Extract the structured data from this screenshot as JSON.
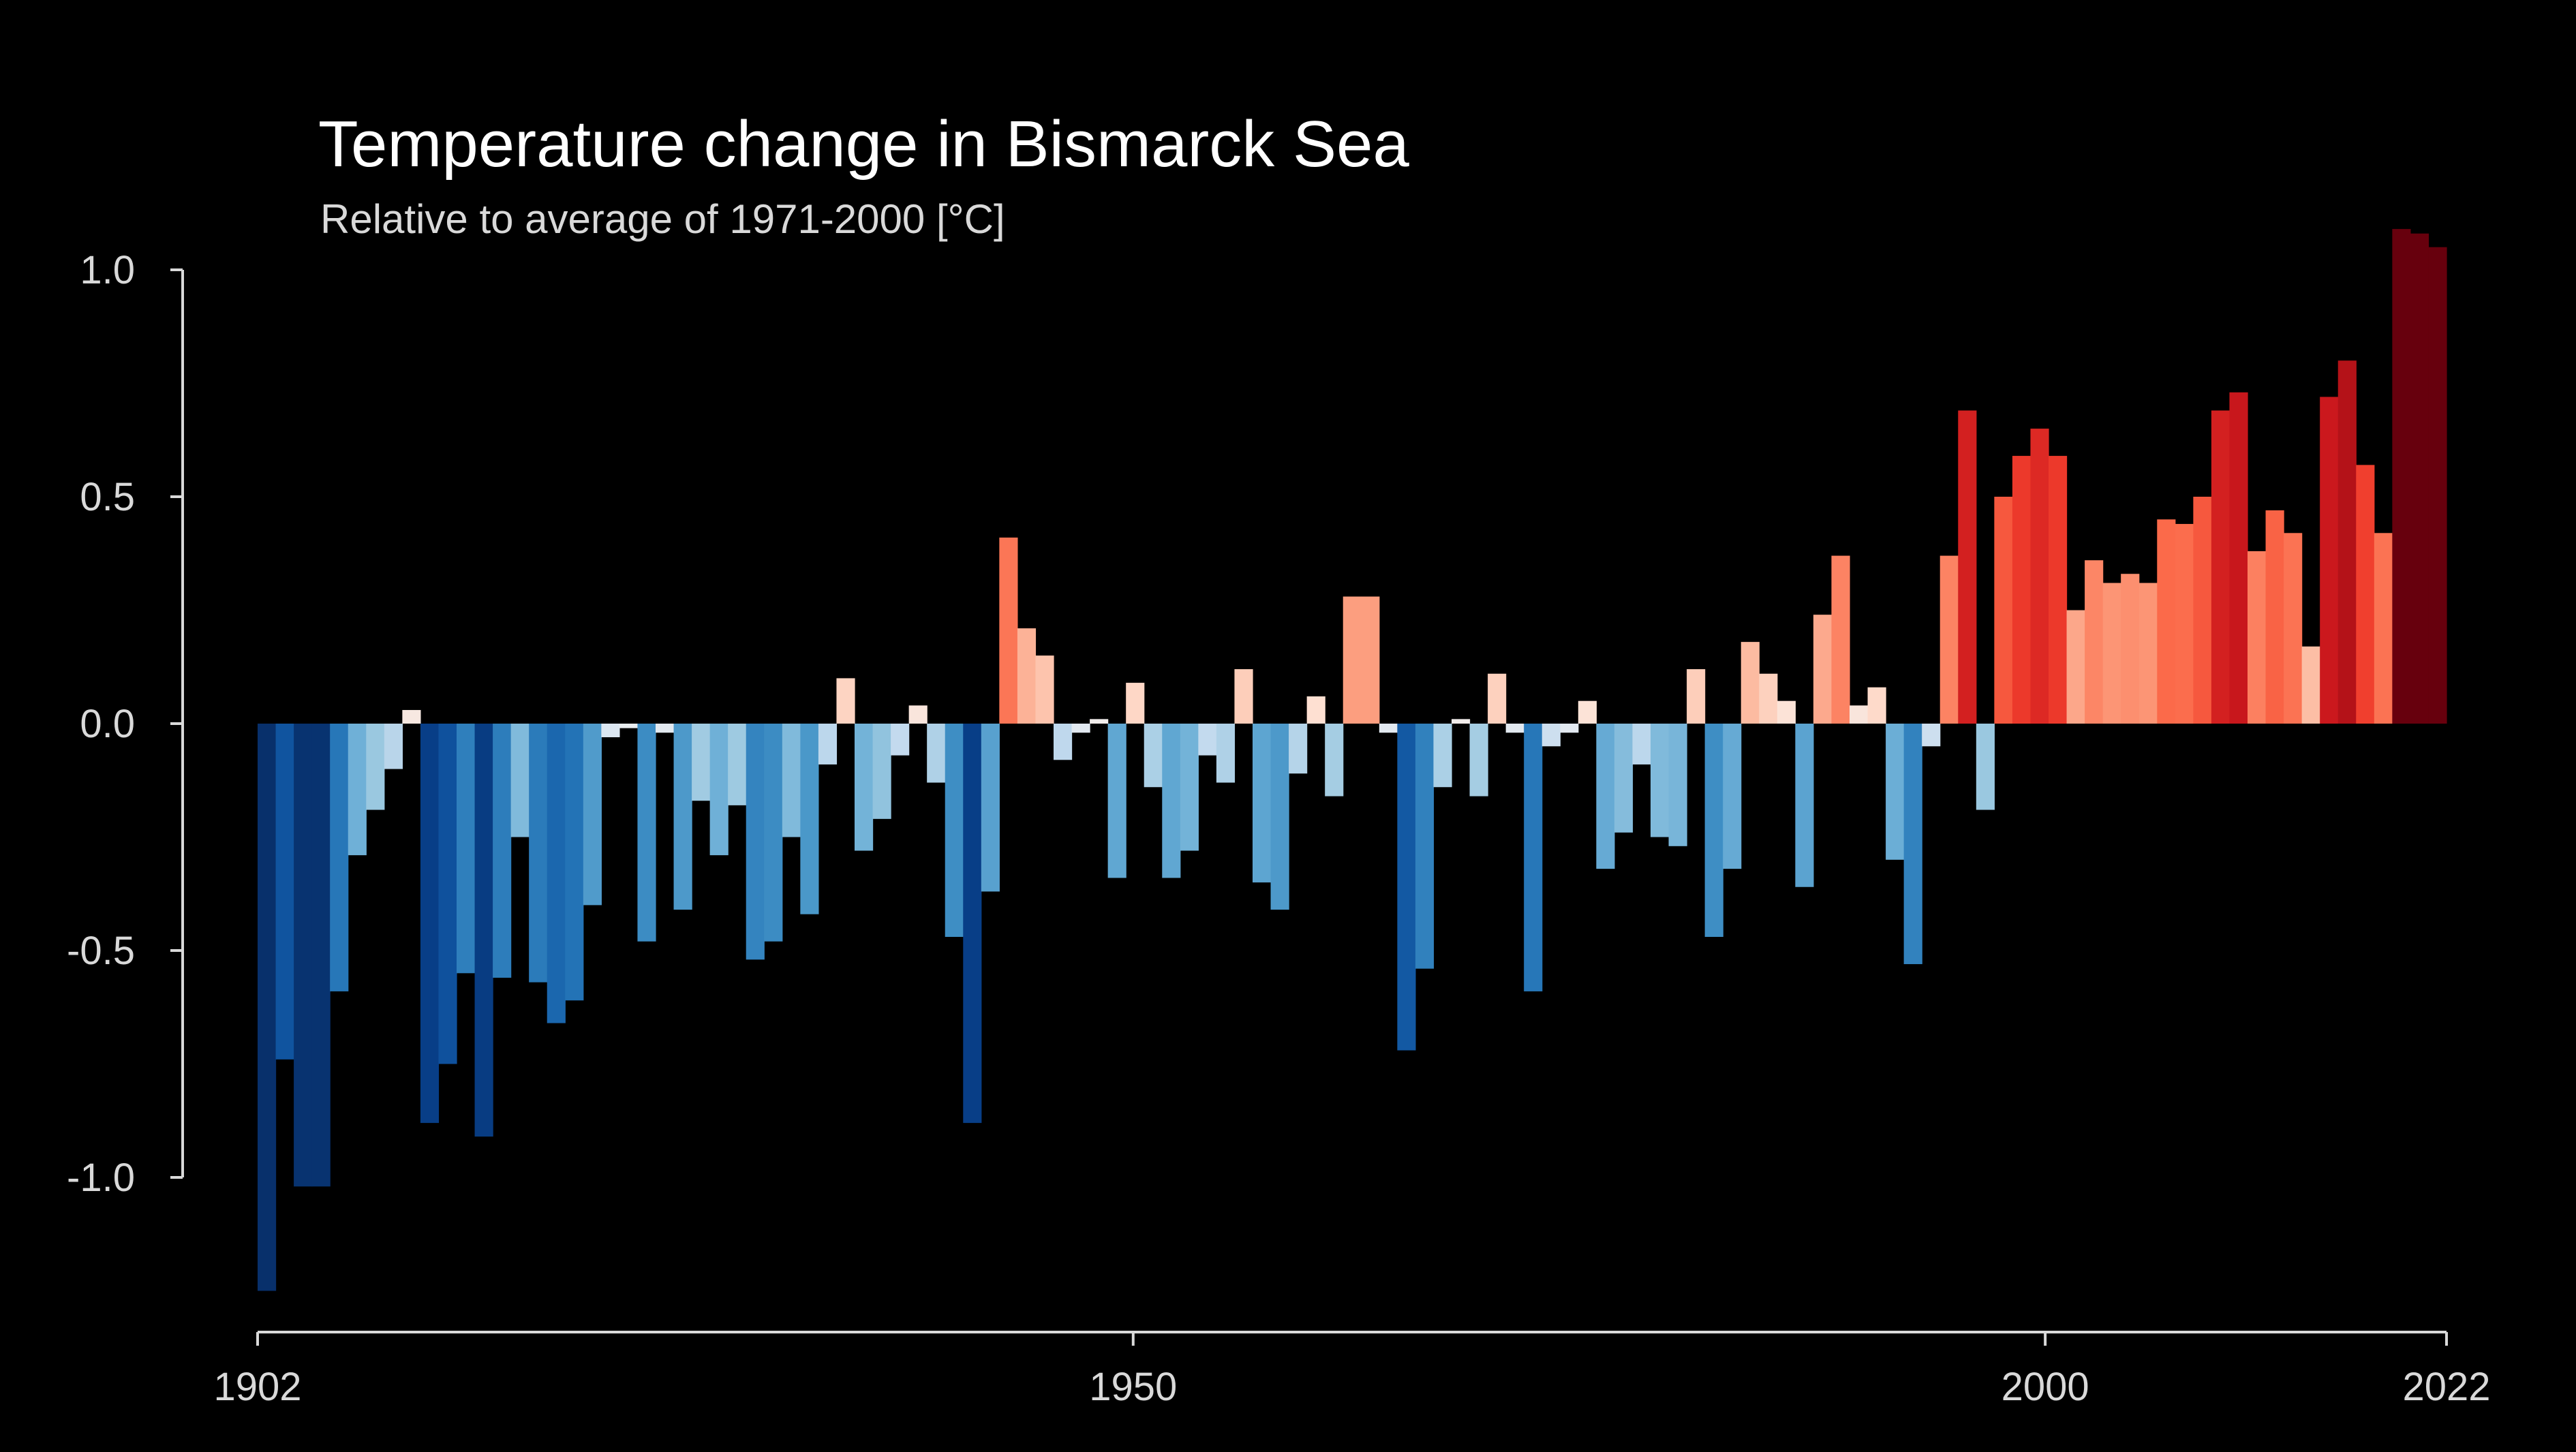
{
  "chart_data": {
    "type": "bar",
    "title": "Temperature change in Bismarck Sea",
    "subtitle": "Relative to average of 1971-2000  [°C]",
    "xlabel": "",
    "ylabel": "",
    "x_start": 1902,
    "x_end": 2022,
    "xlim": [
      1902,
      2022
    ],
    "ylim": [
      -1.3,
      1.1
    ],
    "x_ticks": [
      1902,
      1950,
      2000,
      2022
    ],
    "x_tick_labels": [
      "1902",
      "1950",
      "2000",
      "2022"
    ],
    "y_ticks": [
      1.0,
      0.5,
      0.0,
      -0.5,
      -1.0
    ],
    "y_tick_labels": [
      "1.0",
      "0.5",
      "0.0",
      "-0.5",
      "-1.0"
    ],
    "grid": false,
    "legend": "none",
    "color_scale": "blue-white-red (warming stripes)",
    "years": [
      1902,
      1903,
      1904,
      1905,
      1906,
      1907,
      1908,
      1909,
      1910,
      1911,
      1912,
      1913,
      1914,
      1915,
      1916,
      1917,
      1918,
      1919,
      1920,
      1921,
      1922,
      1923,
      1924,
      1925,
      1926,
      1927,
      1928,
      1929,
      1930,
      1931,
      1932,
      1933,
      1934,
      1935,
      1936,
      1937,
      1938,
      1939,
      1940,
      1941,
      1942,
      1943,
      1944,
      1945,
      1946,
      1947,
      1948,
      1949,
      1950,
      1951,
      1952,
      1953,
      1954,
      1955,
      1956,
      1957,
      1958,
      1959,
      1960,
      1961,
      1962,
      1963,
      1964,
      1965,
      1966,
      1967,
      1968,
      1969,
      1970,
      1971,
      1972,
      1973,
      1974,
      1975,
      1976,
      1977,
      1978,
      1979,
      1980,
      1981,
      1982,
      1983,
      1984,
      1985,
      1986,
      1987,
      1988,
      1989,
      1990,
      1991,
      1992,
      1993,
      1994,
      1995,
      1996,
      1997,
      1998,
      1999,
      2000,
      2001,
      2002,
      2003,
      2004,
      2005,
      2006,
      2007,
      2008,
      2009,
      2010,
      2011,
      2012,
      2013,
      2014,
      2015,
      2016,
      2017,
      2018,
      2019,
      2020,
      2021,
      2022
    ],
    "values": [
      -1.25,
      -0.74,
      -1.02,
      -1.02,
      -0.59,
      -0.29,
      -0.19,
      -0.1,
      0.03,
      -0.88,
      -0.75,
      -0.55,
      -0.91,
      -0.56,
      -0.25,
      -0.57,
      -0.66,
      -0.61,
      -0.4,
      -0.03,
      -0.01,
      -0.48,
      -0.02,
      -0.41,
      -0.17,
      -0.29,
      -0.18,
      -0.52,
      -0.48,
      -0.25,
      -0.42,
      -0.09,
      0.1,
      -0.28,
      -0.21,
      -0.07,
      0.04,
      -0.13,
      -0.47,
      -0.88,
      -0.37,
      0.41,
      0.21,
      0.15,
      -0.08,
      -0.02,
      0.01,
      -0.34,
      0.09,
      -0.14,
      -0.34,
      -0.28,
      -0.07,
      -0.13,
      0.12,
      -0.35,
      -0.41,
      -0.11,
      0.06,
      -0.16,
      0.28,
      0.28,
      -0.02,
      -0.72,
      -0.54,
      -0.14,
      0.01,
      -0.16,
      0.11,
      -0.02,
      -0.59,
      -0.05,
      -0.02,
      0.05,
      -0.32,
      -0.24,
      -0.09,
      -0.25,
      -0.27,
      0.12,
      -0.47,
      -0.32,
      0.18,
      0.11,
      0.05,
      -0.36,
      0.24,
      0.37,
      0.04,
      0.08,
      -0.3,
      -0.53,
      -0.05,
      0.37,
      0.69,
      -0.19,
      0.5,
      0.59,
      0.65,
      0.59,
      0.25,
      0.36,
      0.31,
      0.33,
      0.31,
      0.45,
      0.44,
      0.5,
      0.69,
      0.73,
      0.38,
      0.47,
      0.42,
      0.17,
      0.72,
      0.8,
      0.57,
      0.42,
      1.09,
      1.08,
      1.05
    ]
  }
}
